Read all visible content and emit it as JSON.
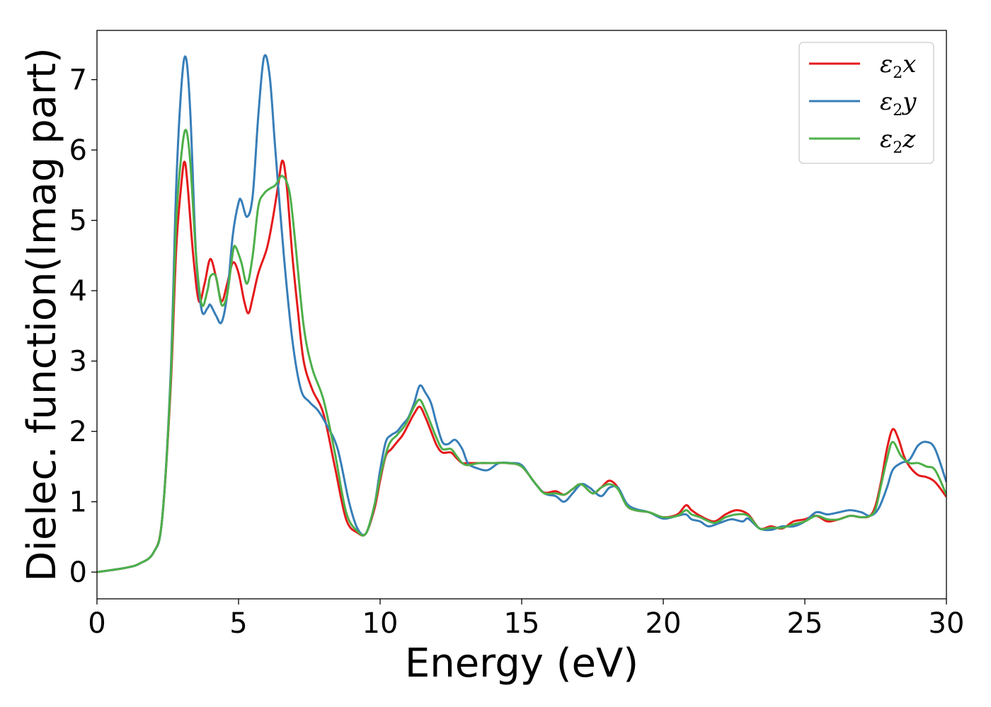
{
  "chart_data": {
    "type": "line",
    "xlabel": "Energy (eV)",
    "ylabel": "Dielec. function(Imag part)",
    "xlim": [
      0,
      30
    ],
    "ylim": [
      -0.38,
      7.7
    ],
    "xticks": [
      0,
      5,
      10,
      15,
      20,
      25,
      30
    ],
    "yticks": [
      0,
      1,
      2,
      3,
      4,
      5,
      6,
      7
    ],
    "grid": false,
    "legend_position": "top-right",
    "series": [
      {
        "name": "ε2x",
        "legend_base": "ε",
        "legend_sub": "2",
        "legend_var": "x",
        "color": "#e41a1c",
        "x": [
          0,
          1,
          1.5,
          2,
          2.3,
          2.6,
          2.8,
          3.0,
          3.1,
          3.2,
          3.4,
          3.6,
          3.8,
          4.0,
          4.2,
          4.4,
          4.6,
          4.8,
          5.0,
          5.2,
          5.35,
          5.5,
          5.7,
          6.0,
          6.2,
          6.4,
          6.55,
          6.7,
          6.9,
          7.1,
          7.3,
          7.6,
          8.0,
          8.4,
          8.8,
          9.2,
          9.5,
          9.8,
          10.0,
          10.2,
          10.4,
          10.6,
          10.8,
          11.0,
          11.2,
          11.4,
          11.6,
          11.8,
          12.0,
          12.2,
          12.5,
          12.7,
          12.9,
          13.1,
          13.5,
          14.0,
          14.5,
          15.0,
          15.5,
          15.8,
          16.2,
          16.5,
          16.8,
          17.1,
          17.5,
          17.8,
          18.1,
          18.4,
          18.7,
          19.0,
          19.5,
          20.0,
          20.5,
          20.8,
          21.0,
          21.3,
          21.8,
          22.2,
          22.6,
          23.0,
          23.4,
          23.8,
          24.2,
          24.6,
          25.0,
          25.4,
          25.8,
          26.2,
          26.6,
          27.0,
          27.3,
          27.5,
          27.7,
          27.9,
          28.1,
          28.3,
          28.5,
          28.7,
          29.0,
          29.3,
          29.6,
          30.0
        ],
        "values": [
          0,
          0.06,
          0.12,
          0.28,
          0.75,
          2.6,
          4.6,
          5.6,
          5.83,
          5.5,
          4.5,
          3.85,
          4.1,
          4.45,
          4.2,
          3.85,
          4.1,
          4.4,
          4.25,
          3.85,
          3.68,
          3.9,
          4.25,
          4.6,
          5.0,
          5.5,
          5.85,
          5.5,
          4.5,
          3.7,
          3.0,
          2.6,
          2.25,
          1.5,
          0.75,
          0.56,
          0.55,
          0.9,
          1.3,
          1.65,
          1.75,
          1.85,
          1.95,
          2.1,
          2.25,
          2.35,
          2.2,
          2.0,
          1.8,
          1.7,
          1.7,
          1.62,
          1.55,
          1.55,
          1.55,
          1.55,
          1.55,
          1.5,
          1.25,
          1.13,
          1.15,
          1.1,
          1.18,
          1.25,
          1.12,
          1.2,
          1.3,
          1.2,
          0.95,
          0.88,
          0.85,
          0.78,
          0.82,
          0.95,
          0.88,
          0.8,
          0.72,
          0.82,
          0.88,
          0.82,
          0.62,
          0.65,
          0.62,
          0.72,
          0.75,
          0.8,
          0.72,
          0.75,
          0.8,
          0.78,
          0.8,
          0.95,
          1.3,
          1.75,
          2.03,
          1.9,
          1.65,
          1.5,
          1.38,
          1.35,
          1.28,
          1.07
        ]
      },
      {
        "name": "ε2y",
        "legend_base": "ε",
        "legend_sub": "2",
        "legend_var": "y",
        "color": "#377eb8",
        "x": [
          0,
          1,
          1.5,
          2,
          2.3,
          2.6,
          2.8,
          3.0,
          3.15,
          3.3,
          3.5,
          3.7,
          3.9,
          4.0,
          4.2,
          4.4,
          4.6,
          4.8,
          5.0,
          5.1,
          5.3,
          5.5,
          5.7,
          5.9,
          6.1,
          6.3,
          6.6,
          6.9,
          7.2,
          7.5,
          7.8,
          8.1,
          8.5,
          8.9,
          9.2,
          9.5,
          9.8,
          10.0,
          10.2,
          10.4,
          10.6,
          10.8,
          11.0,
          11.2,
          11.4,
          11.6,
          11.8,
          12.0,
          12.2,
          12.4,
          12.65,
          12.9,
          13.1,
          13.4,
          13.8,
          14.2,
          14.6,
          15.0,
          15.4,
          15.8,
          16.2,
          16.5,
          16.8,
          17.1,
          17.4,
          17.8,
          18.1,
          18.4,
          18.7,
          19.0,
          19.5,
          20.0,
          20.5,
          20.8,
          21.0,
          21.3,
          21.6,
          22.0,
          22.4,
          22.8,
          23.0,
          23.4,
          23.8,
          24.2,
          24.6,
          25.0,
          25.4,
          25.8,
          26.2,
          26.6,
          27.0,
          27.3,
          27.6,
          27.9,
          28.1,
          28.4,
          28.7,
          29.0,
          29.3,
          29.6,
          30.0
        ],
        "values": [
          0,
          0.06,
          0.12,
          0.28,
          0.75,
          2.8,
          5.5,
          7.0,
          7.3,
          6.5,
          4.5,
          3.72,
          3.75,
          3.8,
          3.65,
          3.55,
          3.95,
          4.8,
          5.25,
          5.28,
          5.05,
          5.35,
          6.5,
          7.32,
          7.05,
          6.0,
          4.5,
          3.3,
          2.6,
          2.42,
          2.3,
          2.1,
          1.75,
          1.0,
          0.62,
          0.55,
          0.95,
          1.45,
          1.85,
          1.95,
          2.0,
          2.1,
          2.2,
          2.4,
          2.65,
          2.55,
          2.4,
          2.1,
          1.85,
          1.82,
          1.88,
          1.75,
          1.55,
          1.48,
          1.45,
          1.55,
          1.55,
          1.52,
          1.3,
          1.12,
          1.08,
          1.0,
          1.12,
          1.25,
          1.2,
          1.08,
          1.2,
          1.2,
          0.98,
          0.9,
          0.85,
          0.76,
          0.8,
          0.82,
          0.75,
          0.72,
          0.65,
          0.7,
          0.75,
          0.72,
          0.76,
          0.62,
          0.6,
          0.65,
          0.65,
          0.72,
          0.85,
          0.82,
          0.85,
          0.88,
          0.85,
          0.8,
          0.9,
          1.2,
          1.45,
          1.55,
          1.6,
          1.8,
          1.85,
          1.75,
          1.28
        ]
      },
      {
        "name": "ε2z",
        "legend_base": "ε",
        "legend_sub": "2",
        "legend_var": "z",
        "color": "#4daf4a",
        "x": [
          0,
          1,
          1.5,
          2,
          2.3,
          2.6,
          2.8,
          3.0,
          3.15,
          3.3,
          3.5,
          3.7,
          3.9,
          4.0,
          4.2,
          4.4,
          4.6,
          4.8,
          4.9,
          5.1,
          5.3,
          5.5,
          5.7,
          5.9,
          6.1,
          6.3,
          6.55,
          6.8,
          7.0,
          7.3,
          7.6,
          8.0,
          8.4,
          8.8,
          9.2,
          9.5,
          9.8,
          10.0,
          10.3,
          10.6,
          10.9,
          11.2,
          11.4,
          11.6,
          11.8,
          12.0,
          12.2,
          12.5,
          12.7,
          12.9,
          13.1,
          13.5,
          14.0,
          14.5,
          15.0,
          15.5,
          15.8,
          16.2,
          16.5,
          16.8,
          17.1,
          17.5,
          17.8,
          18.1,
          18.4,
          18.7,
          19.0,
          19.5,
          20.0,
          20.5,
          20.8,
          21.0,
          21.3,
          21.8,
          22.2,
          22.6,
          23.0,
          23.4,
          23.8,
          24.2,
          24.6,
          25.0,
          25.4,
          25.8,
          26.2,
          26.6,
          27.0,
          27.3,
          27.5,
          27.7,
          27.9,
          28.1,
          28.4,
          28.7,
          29.0,
          29.3,
          29.6,
          30.0
        ],
        "values": [
          0,
          0.06,
          0.12,
          0.28,
          0.75,
          2.7,
          5.0,
          6.0,
          6.28,
          5.8,
          4.5,
          3.8,
          4.0,
          4.2,
          4.2,
          3.8,
          3.95,
          4.55,
          4.62,
          4.4,
          4.1,
          4.5,
          5.2,
          5.38,
          5.45,
          5.5,
          5.63,
          5.4,
          4.7,
          3.5,
          2.9,
          2.45,
          1.7,
          0.85,
          0.58,
          0.55,
          0.95,
          1.35,
          1.8,
          1.95,
          2.1,
          2.35,
          2.45,
          2.3,
          2.1,
          1.9,
          1.75,
          1.75,
          1.65,
          1.55,
          1.52,
          1.55,
          1.55,
          1.55,
          1.5,
          1.25,
          1.12,
          1.12,
          1.1,
          1.18,
          1.25,
          1.12,
          1.2,
          1.25,
          1.18,
          0.95,
          0.88,
          0.85,
          0.78,
          0.8,
          0.88,
          0.82,
          0.78,
          0.7,
          0.78,
          0.82,
          0.8,
          0.62,
          0.63,
          0.63,
          0.68,
          0.72,
          0.8,
          0.75,
          0.75,
          0.8,
          0.78,
          0.8,
          0.9,
          1.25,
          1.6,
          1.85,
          1.65,
          1.55,
          1.55,
          1.5,
          1.45,
          1.1
        ]
      }
    ]
  }
}
